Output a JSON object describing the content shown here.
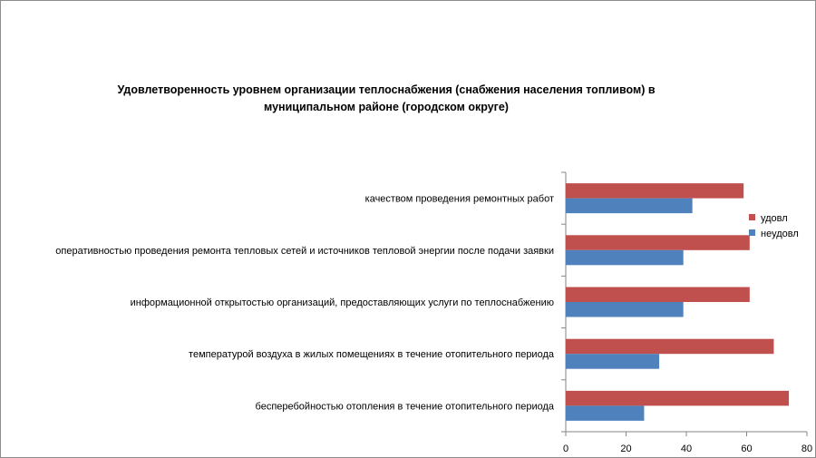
{
  "chart_data": {
    "type": "bar",
    "orientation": "horizontal",
    "title": "Удовлетворенность уровнем организации теплоснабжения (снабжения населения топливом) в муниципальном районе (городском округе)",
    "categories": [
      "качеством проведения ремонтных работ",
      "оперативностью проведения ремонта тепловых сетей и источников тепловой энергии после подачи заявки",
      "информационной открытостью организаций, предоставляющих услуги по теплоснабжению",
      "температурой воздуха в жилых помещениях в течение отопительного периода",
      "бесперебойностью отопления в течение отопительного периода"
    ],
    "series": [
      {
        "name": "удовл",
        "color": "#c0504d",
        "values": [
          59,
          61,
          61,
          69,
          74
        ]
      },
      {
        "name": "неудовл",
        "color": "#4f81bd",
        "values": [
          42,
          39,
          39,
          31,
          26
        ]
      }
    ],
    "xticks": [
      "0",
      "20",
      "40",
      "60",
      "80"
    ],
    "xlim": [
      0,
      80
    ],
    "xlabel": "",
    "ylabel": "",
    "legend_position": "right"
  }
}
